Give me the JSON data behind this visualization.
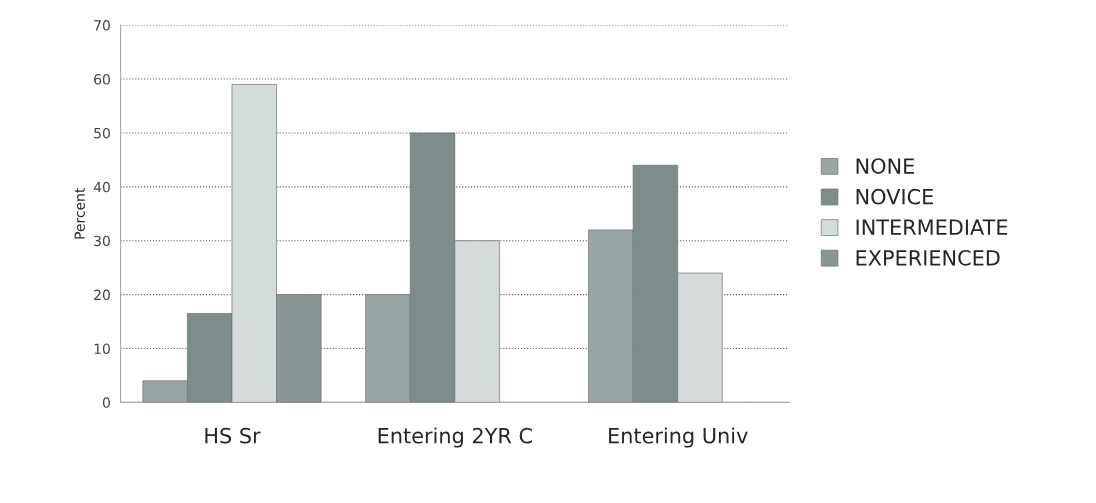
{
  "chart_data": {
    "type": "bar",
    "ylabel": "Percent",
    "categories": [
      "HS Sr",
      "Entering 2YR C",
      "Entering Univ"
    ],
    "series": [
      {
        "name": "NONE",
        "color": "#9aa6a6",
        "values": [
          4,
          20,
          32
        ]
      },
      {
        "name": "NOVICE",
        "color": "#7f8c8c",
        "values": [
          16.5,
          50,
          44
        ]
      },
      {
        "name": "INTERMEDIATE",
        "color": "#d3dbdb",
        "values": [
          59,
          30,
          24
        ]
      },
      {
        "name": "EXPERIENCED",
        "color": "#8a9696",
        "values": [
          20,
          null,
          null
        ]
      }
    ],
    "ylim": [
      0,
      70
    ],
    "yticks": [
      0,
      10,
      20,
      30,
      40,
      50,
      60,
      70
    ],
    "grid": "y",
    "legend": "right"
  }
}
